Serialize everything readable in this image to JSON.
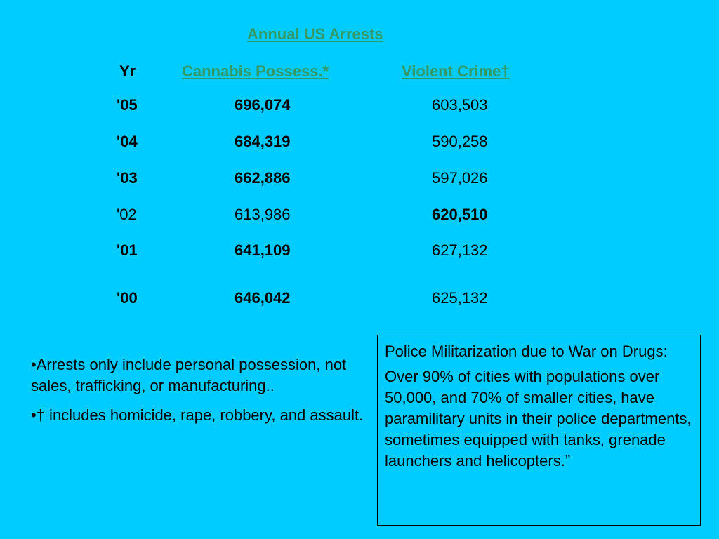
{
  "title": "Annual US Arrests",
  "headers": {
    "year": "Yr",
    "cannabis": "Cannabis Possess.*",
    "violent": "Violent Crime†"
  },
  "rows": [
    {
      "year": "'05",
      "cannabis": "696,074",
      "violent": "603,503"
    },
    {
      "year": "'04",
      "cannabis": "684,319",
      "violent": "590,258"
    },
    {
      "year": "'03",
      "cannabis": "662,886",
      "violent": "597,026"
    },
    {
      "year": "'02",
      "cannabis": "613,986",
      "violent": "620,510"
    },
    {
      "year": "'01",
      "cannabis": "641,109",
      "violent": "627,132"
    },
    {
      "year": "'00",
      "cannabis": "646,042",
      "violent": "625,132"
    }
  ],
  "notes": [
    "•Arrests only include personal possession, not sales, trafficking, or manufacturing..",
    "•† includes homicide, rape, robbery, and assault."
  ],
  "box": {
    "heading": "Police Militarization due to War on Drugs:",
    "body": "Over 90% of cities with populations over 50,000, and 70% of smaller cities, have paramilitary units in their police departments, sometimes equipped with tanks, grenade launchers and helicopters.”"
  }
}
